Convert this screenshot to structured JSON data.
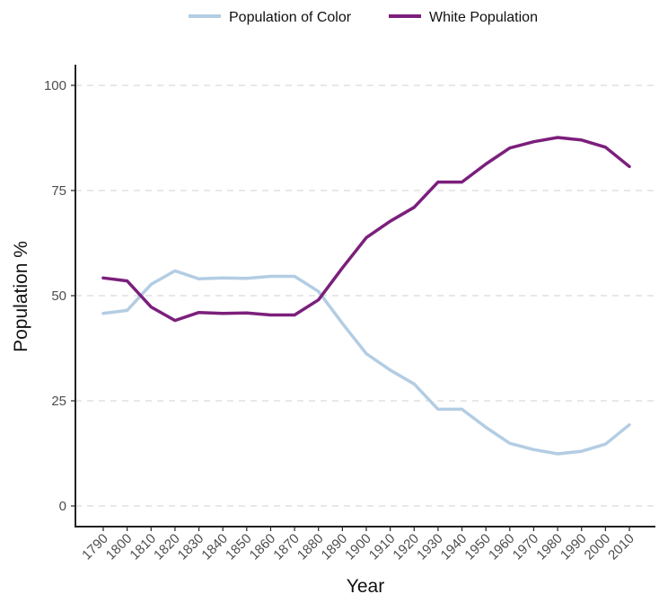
{
  "chart_data": {
    "type": "line",
    "xlabel": "Year",
    "ylabel": "Population %",
    "ylim": [
      0,
      100
    ],
    "y_ticks": [
      0,
      25,
      50,
      75,
      100
    ],
    "grid": "horizontal dashed",
    "legend_position": "top",
    "x": [
      1790,
      1800,
      1810,
      1820,
      1830,
      1840,
      1850,
      1860,
      1870,
      1880,
      1890,
      1900,
      1910,
      1920,
      1930,
      1940,
      1950,
      1960,
      1970,
      1980,
      1990,
      2000,
      2010
    ],
    "series": [
      {
        "name": "Population of Color",
        "color": "#b3cde3",
        "values": [
          45.8,
          46.5,
          52.7,
          55.9,
          54.0,
          54.2,
          54.1,
          54.6,
          54.6,
          51.0,
          43.4,
          36.2,
          32.3,
          29.0,
          23.0,
          23.0,
          18.7,
          14.9,
          13.4,
          12.4,
          13.0,
          14.7,
          19.3
        ]
      },
      {
        "name": "White Population",
        "color": "#7b1f7c",
        "values": [
          54.2,
          53.5,
          47.3,
          44.1,
          46.0,
          45.8,
          45.9,
          45.4,
          45.4,
          49.0,
          56.6,
          63.8,
          67.7,
          71.0,
          77.0,
          77.0,
          81.3,
          85.1,
          86.6,
          87.6,
          87.0,
          85.3,
          80.7
        ]
      }
    ]
  }
}
